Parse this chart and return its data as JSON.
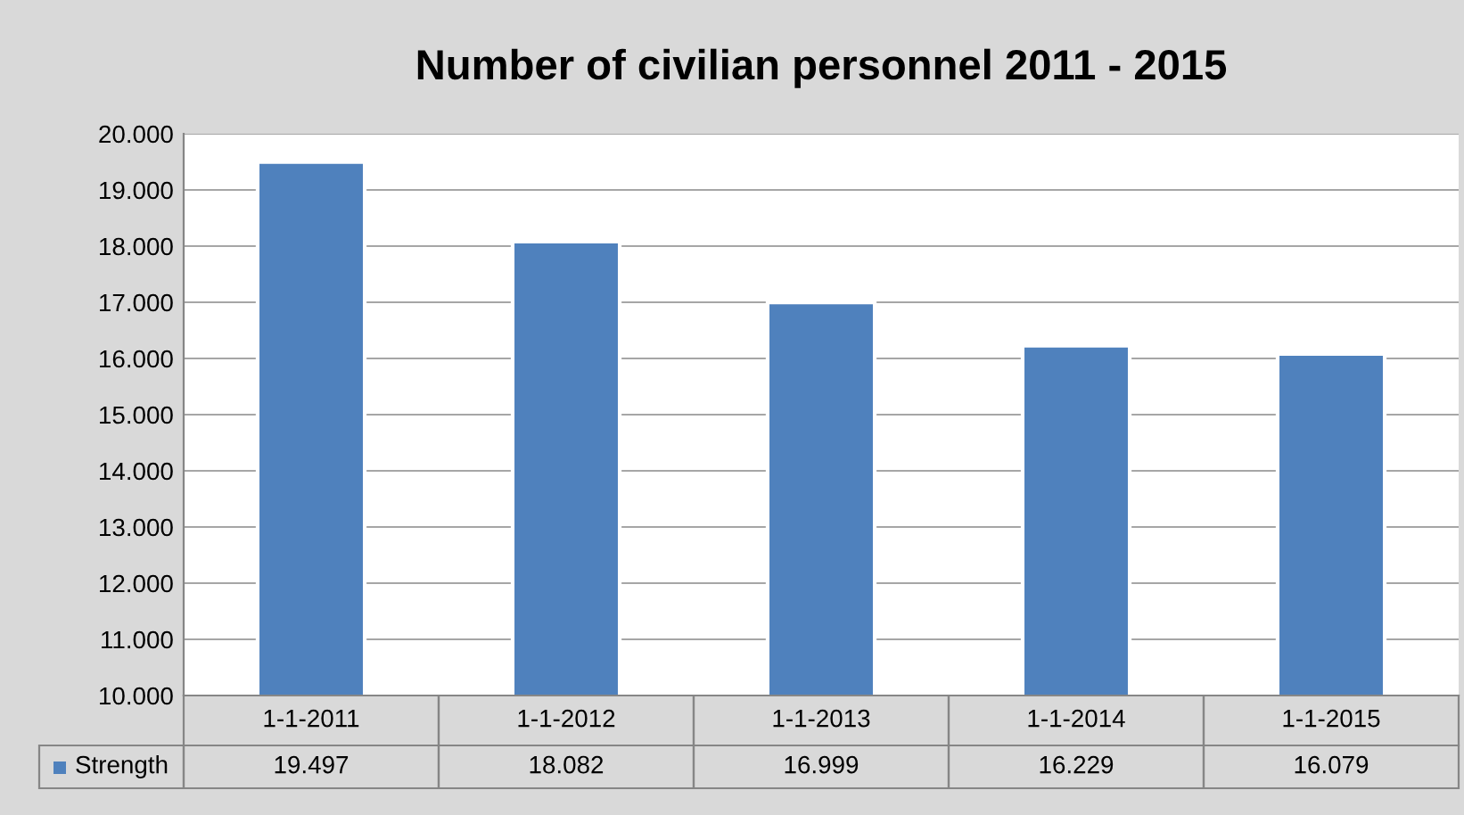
{
  "chart_data": {
    "type": "bar",
    "title": "Number of civilian personnel 2011 - 2015",
    "categories": [
      "1-1-2011",
      "1-1-2012",
      "1-1-2013",
      "1-1-2014",
      "1-1-2015"
    ],
    "series": [
      {
        "name": "Strength",
        "color": "#4f81bd",
        "values": [
          19497,
          18082,
          16999,
          16229,
          16079
        ],
        "value_labels": [
          "19.497",
          "18.082",
          "16.999",
          "16.229",
          "16.079"
        ]
      }
    ],
    "ylim": [
      10000,
      20000
    ],
    "yticks": [
      {
        "value": 10000,
        "label": "10.000"
      },
      {
        "value": 11000,
        "label": "11.000"
      },
      {
        "value": 12000,
        "label": "12.000"
      },
      {
        "value": 13000,
        "label": "13.000"
      },
      {
        "value": 14000,
        "label": "14.000"
      },
      {
        "value": 15000,
        "label": "15.000"
      },
      {
        "value": 16000,
        "label": "16.000"
      },
      {
        "value": 17000,
        "label": "17.000"
      },
      {
        "value": 18000,
        "label": "18.000"
      },
      {
        "value": 19000,
        "label": "19.000"
      },
      {
        "value": 20000,
        "label": "20.000"
      }
    ],
    "grid": "y"
  }
}
